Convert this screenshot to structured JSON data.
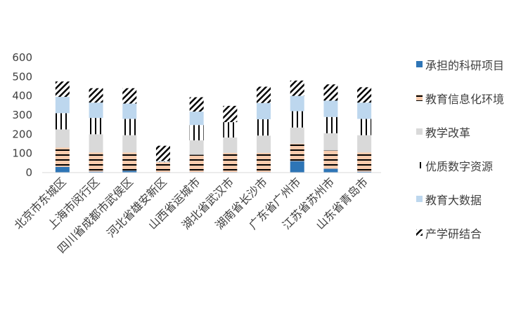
{
  "chart_data": {
    "type": "bar",
    "stacked": true,
    "title": "",
    "xlabel": "",
    "ylabel": "",
    "ylim": [
      0,
      600
    ],
    "yticks": [
      0,
      100,
      200,
      300,
      400,
      500,
      600
    ],
    "grid": false,
    "legend_position": "right",
    "categories": [
      "北京市东城区",
      "上海市闵行区",
      "四川省成都市武侯区",
      "河北省雄安新区",
      "山西省运城市",
      "湖北省武汉市",
      "湖南省长沙市",
      "广东省广州市",
      "江苏省苏州市",
      "山东省青岛市"
    ],
    "series": [
      {
        "name": "承担的科研项目",
        "color": "#2E75B6",
        "pattern": "solid",
        "values": [
          30,
          5,
          10,
          3,
          3,
          3,
          3,
          60,
          20,
          5
        ]
      },
      {
        "name": "教育信息化环境",
        "color": "#F8CBAD",
        "pattern": "hstripe",
        "values": [
          100,
          100,
          95,
          50,
          90,
          100,
          100,
          90,
          95,
          100
        ]
      },
      {
        "name": "教学改革",
        "color": "#D9D9D9",
        "pattern": "solid",
        "values": [
          95,
          95,
          90,
          3,
          75,
          80,
          90,
          85,
          90,
          90
        ]
      },
      {
        "name": "优质数字资源",
        "color": "#FFFFFF",
        "pattern": "vstripe",
        "values": [
          85,
          85,
          85,
          2,
          80,
          80,
          85,
          85,
          85,
          85
        ]
      },
      {
        "name": "教育大数据",
        "color": "#BDD7EE",
        "pattern": "solid",
        "values": [
          85,
          80,
          80,
          2,
          70,
          0,
          85,
          80,
          85,
          85
        ]
      },
      {
        "name": "产学研结合",
        "color": "#000000",
        "pattern": "diag",
        "values": [
          80,
          75,
          80,
          80,
          75,
          85,
          85,
          80,
          85,
          80
        ]
      }
    ]
  }
}
